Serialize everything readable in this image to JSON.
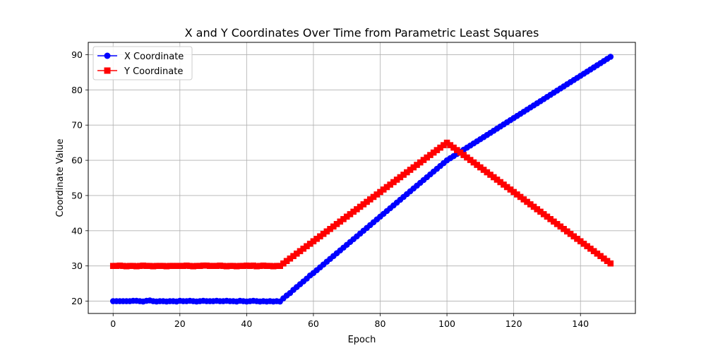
{
  "chart_data": {
    "type": "line",
    "title": "X and Y Coordinates Over Time from Parametric Least Squares",
    "xlabel": "Epoch",
    "ylabel": "Coordinate Value",
    "xlim": [
      -7.45,
      156.45
    ],
    "ylim": [
      16.5,
      93.5
    ],
    "xticks": [
      0,
      20,
      40,
      60,
      80,
      100,
      120,
      140
    ],
    "yticks": [
      20,
      30,
      40,
      50,
      60,
      70,
      80,
      90
    ],
    "grid": true,
    "legend_position": "top-left",
    "series": [
      {
        "name": "X Coordinate",
        "color": "#0000ff",
        "marker": "circle",
        "x_start": 0,
        "x_step": 1,
        "values": [
          20.0,
          20.0,
          20.0,
          20.0,
          20.0,
          20.0,
          20.1,
          20.1,
          20.0,
          19.9,
          20.1,
          20.2,
          20.0,
          19.9,
          20.0,
          20.0,
          19.9,
          20.0,
          20.0,
          19.9,
          20.1,
          20.0,
          20.0,
          20.1,
          20.0,
          19.9,
          20.0,
          20.1,
          20.0,
          20.0,
          20.0,
          20.1,
          20.0,
          20.0,
          20.1,
          20.0,
          20.0,
          19.9,
          20.1,
          20.0,
          19.9,
          20.0,
          20.1,
          20.0,
          19.9,
          20.0,
          19.9,
          20.0,
          19.9,
          20.0,
          19.9,
          20.8,
          21.6,
          22.3,
          23.2,
          24.0,
          24.8,
          25.6,
          26.4,
          27.3,
          28.0,
          28.8,
          29.6,
          30.4,
          31.2,
          32.0,
          32.8,
          33.6,
          34.4,
          35.2,
          36.0,
          36.8,
          37.6,
          38.4,
          39.2,
          40.0,
          40.8,
          41.6,
          42.4,
          43.2,
          44.0,
          44.8,
          45.6,
          46.4,
          47.2,
          48.0,
          48.8,
          49.6,
          50.4,
          51.2,
          52.0,
          52.8,
          53.6,
          54.4,
          55.2,
          56.0,
          56.8,
          57.6,
          58.4,
          59.2,
          60.0,
          60.6,
          61.2,
          61.8,
          62.4,
          63.0,
          63.6,
          64.2,
          64.8,
          65.4,
          66.0,
          66.6,
          67.2,
          67.8,
          68.4,
          69.0,
          69.6,
          70.2,
          70.8,
          71.4,
          72.0,
          72.6,
          73.2,
          73.8,
          74.4,
          75.0,
          75.6,
          76.2,
          76.8,
          77.4,
          78.0,
          78.6,
          79.2,
          79.8,
          80.4,
          81.0,
          81.6,
          82.2,
          82.8,
          83.4,
          84.0,
          84.6,
          85.2,
          85.8,
          86.4,
          87.0,
          87.6,
          88.2,
          88.8,
          89.4
        ]
      },
      {
        "name": "Y Coordinate",
        "color": "#ff0000",
        "marker": "square",
        "x_start": 0,
        "x_step": 1,
        "values": [
          30.0,
          30.0,
          30.1,
          30.0,
          29.9,
          30.0,
          30.0,
          29.9,
          30.0,
          30.1,
          30.0,
          30.0,
          29.9,
          30.0,
          30.0,
          30.0,
          29.9,
          30.0,
          30.0,
          30.0,
          30.0,
          30.0,
          30.1,
          30.0,
          29.9,
          30.0,
          30.0,
          30.1,
          30.1,
          30.0,
          30.0,
          30.0,
          30.1,
          30.0,
          29.9,
          30.0,
          30.0,
          29.9,
          30.0,
          30.0,
          30.1,
          30.0,
          30.1,
          29.9,
          30.0,
          30.1,
          30.0,
          30.0,
          29.9,
          30.0,
          30.0,
          30.7,
          31.4,
          32.1,
          32.8,
          33.5,
          34.2,
          34.9,
          35.6,
          36.3,
          37.0,
          37.7,
          38.4,
          39.1,
          39.8,
          40.5,
          41.2,
          41.9,
          42.6,
          43.3,
          44.0,
          44.7,
          45.4,
          46.1,
          46.8,
          47.5,
          48.2,
          48.9,
          49.6,
          50.3,
          51.0,
          51.7,
          52.4,
          53.1,
          53.8,
          54.5,
          55.2,
          55.9,
          56.6,
          57.3,
          58.0,
          58.7,
          59.4,
          60.1,
          60.8,
          61.5,
          62.2,
          62.9,
          63.6,
          64.3,
          65.0,
          64.3,
          63.6,
          62.9,
          62.2,
          61.5,
          60.8,
          60.1,
          59.4,
          58.7,
          58.0,
          57.3,
          56.6,
          55.9,
          55.2,
          54.5,
          53.8,
          53.1,
          52.4,
          51.7,
          51.0,
          50.3,
          49.6,
          48.9,
          48.2,
          47.5,
          46.8,
          46.1,
          45.4,
          44.7,
          44.0,
          43.3,
          42.6,
          41.9,
          41.2,
          40.5,
          39.8,
          39.1,
          38.4,
          37.7,
          37.0,
          36.3,
          35.6,
          34.9,
          34.2,
          33.5,
          32.8,
          32.1,
          31.4,
          30.7
        ]
      }
    ]
  }
}
